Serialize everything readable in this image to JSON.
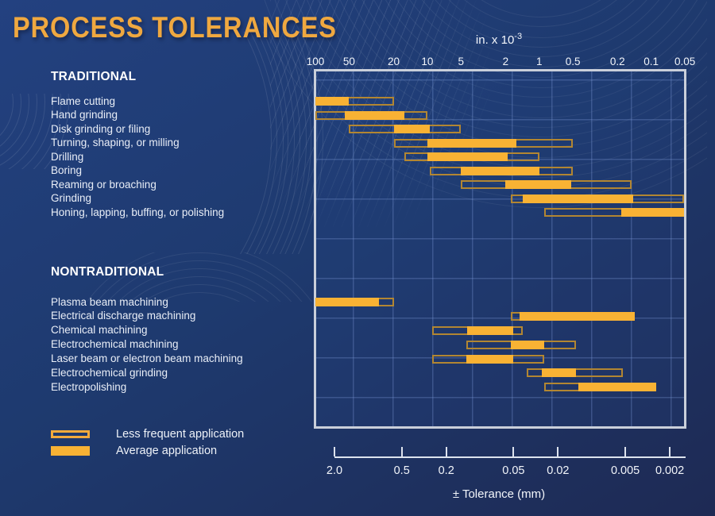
{
  "title": "PROCESS TOLERANCES",
  "sections": {
    "traditional": "TRADITIONAL",
    "nontraditional": "NONTRADITIONAL"
  },
  "legend": {
    "less_frequent": "Less frequent application",
    "average": "Average application"
  },
  "top_axis": {
    "title_base": "in. x 10",
    "title_exponent": "-3"
  },
  "bottom_axis": {
    "axis_label": "± Tolerance (mm)"
  },
  "colors": {
    "background_top": "#234180",
    "background_bottom": "#1e2a54",
    "title_gold": "#efa840",
    "bar_fill": "#f8b234",
    "bar_outline": "#b28632",
    "legend_outline": "#f3aa3c",
    "chart_border": "#c9cfda",
    "grid_line": "#52689f",
    "text": "#f2f5fa"
  },
  "chart_data": {
    "type": "bar",
    "subtype": "horizontal log-scale tolerance range bars",
    "title": "PROCESS TOLERANCES",
    "x_axis_top": {
      "label": "in. x 10^-3",
      "scale": "log",
      "ticks": [
        {
          "v": 100,
          "label": "100"
        },
        {
          "v": 50,
          "label": "50"
        },
        {
          "v": 20,
          "label": "20"
        },
        {
          "v": 10,
          "label": "10"
        },
        {
          "v": 5,
          "label": "5"
        },
        {
          "v": 2,
          "label": "2"
        },
        {
          "v": 1,
          "label": "1"
        },
        {
          "v": 0.5,
          "label": "0.5"
        },
        {
          "v": 0.2,
          "label": "0.2"
        },
        {
          "v": 0.1,
          "label": "0.1"
        },
        {
          "v": 0.05,
          "label": "0.05"
        }
      ]
    },
    "x_axis_bottom": {
      "label": "± Tolerance (mm)",
      "scale": "log",
      "ticks": [
        {
          "v": 2.0,
          "label": "2.0"
        },
        {
          "v": 0.5,
          "label": "0.5"
        },
        {
          "v": 0.2,
          "label": "0.2"
        },
        {
          "v": 0.05,
          "label": "0.05"
        },
        {
          "v": 0.02,
          "label": "0.02"
        },
        {
          "v": 0.005,
          "label": "0.005"
        },
        {
          "v": 0.002,
          "label": "0.002"
        }
      ]
    },
    "series_meaning": {
      "full": "Less frequent application (outlined range)",
      "avg": "Average application (filled range)"
    },
    "units": "values in inches x 10^-3",
    "groups": [
      {
        "name": "TRADITIONAL",
        "rows": [
          {
            "label": "Flame cutting",
            "full": [
              100,
              20
            ],
            "avg": [
              100,
              50
            ]
          },
          {
            "label": "Hand grinding",
            "full": [
              100,
              10
            ],
            "avg": [
              55,
              16
            ]
          },
          {
            "label": "Disk grinding or filing",
            "full": [
              50,
              5
            ],
            "avg": [
              20,
              9.5
            ]
          },
          {
            "label": "Turning, shaping, or milling",
            "full": [
              20,
              0.5
            ],
            "avg": [
              10,
              1.6
            ]
          },
          {
            "label": "Drilling",
            "full": [
              16,
              1
            ],
            "avg": [
              10,
              1.9
            ]
          },
          {
            "label": "Boring",
            "full": [
              9.5,
              0.5
            ],
            "avg": [
              5,
              1
            ]
          },
          {
            "label": "Reaming or broaching",
            "full": [
              5,
              0.15
            ],
            "avg": [
              2,
              0.52
            ]
          },
          {
            "label": "Grinding",
            "full": [
              1.8,
              0.05
            ],
            "avg": [
              1.4,
              0.145
            ]
          },
          {
            "label": "Honing, lapping, buffing, or polishing",
            "full": [
              0.9,
              0.05
            ],
            "avg": [
              0.185,
              0.05
            ]
          }
        ]
      },
      {
        "name": "NONTRADITIONAL",
        "rows": [
          {
            "label": "Plasma beam machining",
            "full": [
              100,
              20
            ],
            "avg": [
              100,
              27
            ]
          },
          {
            "label": "Electrical discharge machining",
            "full": [
              1.8,
              0.14
            ],
            "avg": [
              1.5,
              0.14
            ]
          },
          {
            "label": "Chemical machining",
            "full": [
              9,
              1.4
            ],
            "avg": [
              4.4,
              1.7
            ]
          },
          {
            "label": "Electrochemical machining",
            "full": [
              4.5,
              0.47
            ],
            "avg": [
              1.8,
              0.9
            ]
          },
          {
            "label": "Laser beam or electron beam machining",
            "full": [
              9,
              0.9
            ],
            "avg": [
              4.5,
              1.7
            ]
          },
          {
            "label": "Electrochemical grinding",
            "full": [
              1.3,
              0.18
            ],
            "avg": [
              0.95,
              0.47
            ]
          },
          {
            "label": "Electropolishing",
            "full": [
              0.9,
              0.09
            ],
            "avg": [
              0.45,
              0.09
            ]
          }
        ]
      }
    ]
  }
}
